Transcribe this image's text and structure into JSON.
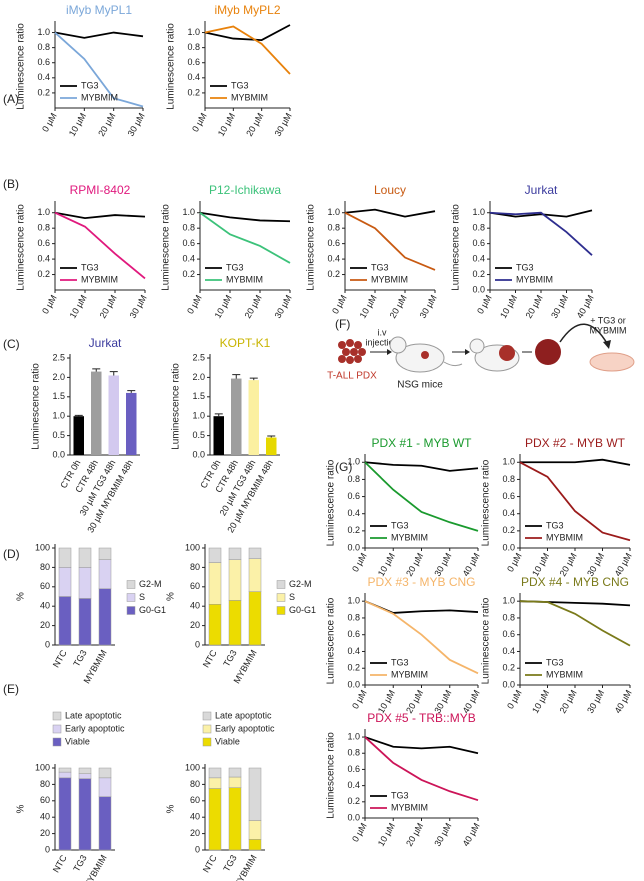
{
  "chart_data": [
    {
      "type": "line",
      "panel": "(A)",
      "title": "iMyb MyPL1",
      "title_color": "#7ba7d9",
      "ylabel": "Luminescence ratio",
      "categories": [
        "0 µM",
        "10 µM",
        "20 µM",
        "30 µM"
      ],
      "ylim": [
        0,
        1.1
      ],
      "yticks": [
        0.2,
        0.4,
        0.6,
        0.8,
        {
          "value": 1,
          "label": "1.0"
        }
      ],
      "legend": "lower left",
      "series": [
        {
          "name": "TG3",
          "color": "#000000",
          "values": [
            1.0,
            0.93,
            1.0,
            0.95
          ]
        },
        {
          "name": "MYBMIM",
          "color": "#7ba7d9",
          "values": [
            1.0,
            0.65,
            0.13,
            0.02
          ]
        }
      ]
    },
    {
      "type": "line",
      "title": "iMyb MyPL2",
      "title_color": "#e8820c",
      "ylabel": "Luminescence ratio",
      "categories": [
        "0 µM",
        "10 µM",
        "20 µM",
        "30 µM"
      ],
      "ylim": [
        0,
        1.1
      ],
      "yticks": [
        0.2,
        0.4,
        0.6,
        0.8,
        {
          "value": 1,
          "label": "1.0"
        }
      ],
      "legend": "lower left",
      "series": [
        {
          "name": "TG3",
          "color": "#000000",
          "values": [
            1.0,
            0.92,
            0.9,
            1.1
          ]
        },
        {
          "name": "MYBMIM",
          "color": "#e8820c",
          "values": [
            1.0,
            1.08,
            0.85,
            0.45
          ]
        }
      ]
    },
    {
      "type": "line",
      "panel": "(B)",
      "title": "RPMI-8402",
      "title_color": "#e0197d",
      "ylabel": "Luminescence ratio",
      "categories": [
        "0 µM",
        "10 µM",
        "20 µM",
        "30 µM"
      ],
      "ylim": [
        0,
        1.1
      ],
      "yticks": [
        0.2,
        0.4,
        0.6,
        0.8,
        {
          "value": 1,
          "label": "1.0"
        }
      ],
      "legend": "lower left",
      "series": [
        {
          "name": "TG3",
          "color": "#000000",
          "values": [
            1.0,
            0.93,
            0.97,
            0.95
          ]
        },
        {
          "name": "MYBMIM",
          "color": "#e0197d",
          "values": [
            1.0,
            0.82,
            0.47,
            0.15
          ]
        }
      ]
    },
    {
      "type": "line",
      "title": "P12-Ichikawa",
      "title_color": "#3cc27a",
      "ylabel": "Luminescence ratio",
      "categories": [
        "0 µM",
        "10 µM",
        "20 µM",
        "30 µM"
      ],
      "ylim": [
        0,
        1.1
      ],
      "yticks": [
        0.2,
        0.4,
        0.6,
        0.8,
        {
          "value": 1,
          "label": "1.0"
        }
      ],
      "legend": "lower left",
      "series": [
        {
          "name": "TG3",
          "color": "#000000",
          "values": [
            1.0,
            0.94,
            0.9,
            0.89
          ]
        },
        {
          "name": "MYBMIM",
          "color": "#3cc27a",
          "values": [
            1.0,
            0.72,
            0.57,
            0.35
          ]
        }
      ]
    },
    {
      "type": "line",
      "title": "Loucy",
      "title_color": "#c85a12",
      "ylabel": "Luminescence ratio",
      "categories": [
        "0 µM",
        "10 µM",
        "20 µM",
        "30 µM"
      ],
      "ylim": [
        0,
        1.1
      ],
      "yticks": [
        0.2,
        0.4,
        0.6,
        0.8,
        {
          "value": 1,
          "label": "1.0"
        }
      ],
      "legend": "lower left",
      "series": [
        {
          "name": "TG3",
          "color": "#000000",
          "values": [
            1.0,
            1.04,
            0.95,
            1.02
          ]
        },
        {
          "name": "MYBMIM",
          "color": "#c85a12",
          "values": [
            1.0,
            0.8,
            0.42,
            0.26
          ]
        }
      ]
    },
    {
      "type": "line",
      "title": "Jurkat",
      "title_color": "#3b3b9e",
      "ylabel": "Luminescence ratio",
      "categories": [
        "0 µM",
        "10 µM",
        "20 µM",
        "30 µM",
        "40 µM"
      ],
      "ylim": [
        0,
        1.1
      ],
      "yticks": [
        {
          "value": 0,
          "label": "0.0"
        },
        0.2,
        0.4,
        0.6,
        0.8,
        {
          "value": 1,
          "label": "1.0"
        }
      ],
      "legend": "lower left",
      "series": [
        {
          "name": "TG3",
          "color": "#000000",
          "values": [
            1.0,
            0.95,
            0.98,
            0.95,
            1.03
          ]
        },
        {
          "name": "MYBMIM",
          "color": "#2e2e8f",
          "values": [
            1.0,
            0.98,
            1.0,
            0.75,
            0.45
          ]
        }
      ]
    },
    {
      "type": "bar",
      "panel": "(C)",
      "title": "Jurkat",
      "title_color": "#3b3b9e",
      "ylabel": "Luminescence ratio",
      "categories": [
        "CTR 0h",
        "CTR 48h",
        "30 µM TG3 48h",
        "30 µM MYBMIM 48h"
      ],
      "values": [
        1.0,
        2.15,
        2.05,
        1.6
      ],
      "errors": [
        0.02,
        0.07,
        0.1,
        0.06
      ],
      "colors": [
        "#000000",
        "#9e9e9e",
        "#d3c9ef",
        "#6a5fc1"
      ],
      "ylim": [
        0,
        2.5
      ],
      "yticks": [
        {
          "value": 0,
          "label": "0.0"
        },
        0.5,
        {
          "value": 1,
          "label": "1.0"
        },
        1.5,
        {
          "value": 2,
          "label": "2.0"
        },
        2.5
      ]
    },
    {
      "type": "bar",
      "title": "KOPT-K1",
      "title_color": "#c8b400",
      "ylabel": "Luminescence ratio",
      "categories": [
        "CTR 0h",
        "CTR 48h",
        "20 µM TG3 48h",
        "20 µM MYBMIM 48h"
      ],
      "values": [
        1.0,
        1.97,
        1.93,
        0.45
      ],
      "errors": [
        0.06,
        0.1,
        0.05,
        0.04
      ],
      "colors": [
        "#000000",
        "#9e9e9e",
        "#fbf0a0",
        "#e6d800"
      ],
      "ylim": [
        0,
        2.5
      ],
      "yticks": [
        {
          "value": 0,
          "label": "0.0"
        },
        0.5,
        {
          "value": 1,
          "label": "1.0"
        },
        1.5,
        {
          "value": 2,
          "label": "2.0"
        },
        2.5
      ]
    },
    {
      "type": "stacked_bar",
      "panel": "(D)",
      "ylabel": "%",
      "categories": [
        "NTC",
        "TG3",
        "MYBMIM"
      ],
      "ylim": [
        0,
        100
      ],
      "yticks": [
        0,
        20,
        40,
        60,
        80,
        100
      ],
      "legend": "right",
      "series": [
        {
          "name": "G0-G1",
          "color": "#6a5fc1",
          "values": [
            50,
            48,
            58
          ]
        },
        {
          "name": "S",
          "color": "#d9d2f2",
          "values": [
            30,
            32,
            30
          ]
        },
        {
          "name": "G2-M",
          "color": "#d9d9d9",
          "values": [
            20,
            20,
            12
          ]
        }
      ]
    },
    {
      "type": "stacked_bar",
      "ylabel": "%",
      "categories": [
        "NTC",
        "TG3",
        "MYBMIM"
      ],
      "ylim": [
        0,
        100
      ],
      "yticks": [
        0,
        20,
        40,
        60,
        80,
        100
      ],
      "legend": "right",
      "series": [
        {
          "name": "G0-G1",
          "color": "#ecdc00",
          "values": [
            42,
            46,
            55
          ]
        },
        {
          "name": "S",
          "color": "#fbf1a8",
          "values": [
            43,
            42,
            34
          ]
        },
        {
          "name": "G2-M",
          "color": "#d9d9d9",
          "values": [
            15,
            12,
            11
          ]
        }
      ]
    },
    {
      "type": "stacked_bar",
      "panel": "(E)",
      "ylabel": "%",
      "categories": [
        "NTC",
        "TG3",
        "MYBMIM"
      ],
      "ylim": [
        0,
        100
      ],
      "yticks": [
        0,
        20,
        40,
        60,
        80,
        100
      ],
      "legend": "top",
      "series": [
        {
          "name": "Viable",
          "color": "#6a5fc1",
          "values": [
            88,
            87,
            65
          ]
        },
        {
          "name": "Early apoptotic",
          "color": "#d9d2f2",
          "values": [
            7,
            6,
            23
          ]
        },
        {
          "name": "Late apoptotic",
          "color": "#d9d9d9",
          "values": [
            5,
            7,
            12
          ]
        }
      ]
    },
    {
      "type": "stacked_bar",
      "ylabel": "%",
      "categories": [
        "NTC",
        "TG3",
        "MYBMIM"
      ],
      "ylim": [
        0,
        100
      ],
      "yticks": [
        0,
        20,
        40,
        60,
        80,
        100
      ],
      "legend": "top",
      "series": [
        {
          "name": "Viable",
          "color": "#ecdc00",
          "values": [
            75,
            76,
            13
          ]
        },
        {
          "name": "Early apoptotic",
          "color": "#fbf1a8",
          "values": [
            13,
            13,
            23
          ]
        },
        {
          "name": "Late apoptotic",
          "color": "#d9d9d9",
          "values": [
            12,
            11,
            64
          ]
        }
      ]
    },
    {
      "type": "line",
      "panel": "(G)",
      "title": "PDX #1 - MYB WT",
      "title_color": "#1a9a2e",
      "ylabel": "Luminescence ratio",
      "categories": [
        "0 µM",
        "10 µM",
        "20 µM",
        "30 µM",
        "40 µM"
      ],
      "ylim": [
        0,
        1.05
      ],
      "yticks": [
        {
          "value": 0,
          "label": "0.0"
        },
        0.2,
        0.4,
        0.6,
        0.8,
        {
          "value": 1,
          "label": "1.0"
        }
      ],
      "legend": "lower left",
      "series": [
        {
          "name": "TG3",
          "color": "#000000",
          "values": [
            1.0,
            0.97,
            0.96,
            0.9,
            0.93
          ]
        },
        {
          "name": "MYBMIM",
          "color": "#1a9a2e",
          "values": [
            1.0,
            0.68,
            0.42,
            0.3,
            0.2
          ]
        }
      ]
    },
    {
      "type": "line",
      "title": "PDX #2 - MYB WT",
      "title_color": "#9b1b1b",
      "ylabel": "Luminescence ratio",
      "categories": [
        "0 µM",
        "10 µM",
        "20 µM",
        "30 µM",
        "40 µM"
      ],
      "ylim": [
        0,
        1.05
      ],
      "yticks": [
        {
          "value": 0,
          "label": "0.0"
        },
        0.2,
        0.4,
        0.6,
        0.8,
        {
          "value": 1,
          "label": "1.0"
        }
      ],
      "legend": "lower left",
      "series": [
        {
          "name": "TG3",
          "color": "#000000",
          "values": [
            1.0,
            1.0,
            1.0,
            1.03,
            0.97
          ]
        },
        {
          "name": "MYBMIM",
          "color": "#9b1b1b",
          "values": [
            1.0,
            0.83,
            0.43,
            0.18,
            0.09
          ]
        }
      ]
    },
    {
      "type": "line",
      "title": "PDX #3 - MYB CNG",
      "title_color": "#f5b56a",
      "ylabel": "Luminescence ratio",
      "categories": [
        "0 µM",
        "10 µM",
        "20 µM",
        "30 µM",
        "40 µM"
      ],
      "ylim": [
        0,
        1.05
      ],
      "yticks": [
        {
          "value": 0,
          "label": "0.0"
        },
        0.2,
        0.4,
        0.6,
        0.8,
        {
          "value": 1,
          "label": "1.0"
        }
      ],
      "legend": "lower left",
      "series": [
        {
          "name": "TG3",
          "color": "#000000",
          "values": [
            1.0,
            0.86,
            0.88,
            0.89,
            0.87
          ]
        },
        {
          "name": "MYBMIM",
          "color": "#f5b56a",
          "values": [
            1.0,
            0.85,
            0.6,
            0.3,
            0.14
          ]
        }
      ]
    },
    {
      "type": "line",
      "title": "PDX #4 - MYB CNG",
      "title_color": "#7a7a1a",
      "ylabel": "Luminescence ratio",
      "categories": [
        "0 µM",
        "10 µM",
        "20 µM",
        "30 µM",
        "40 µM"
      ],
      "ylim": [
        0,
        1.05
      ],
      "yticks": [
        {
          "value": 0,
          "label": "0.0"
        },
        0.2,
        0.4,
        0.6,
        0.8,
        {
          "value": 1,
          "label": "1.0"
        }
      ],
      "legend": "lower left",
      "series": [
        {
          "name": "TG3",
          "color": "#000000",
          "values": [
            1.0,
            0.99,
            0.98,
            0.97,
            0.95
          ]
        },
        {
          "name": "MYBMIM",
          "color": "#7a7a1a",
          "values": [
            1.0,
            0.99,
            0.85,
            0.65,
            0.47
          ]
        }
      ]
    },
    {
      "type": "line",
      "title": "PDX #5 - TRB::MYB",
      "title_color": "#cc1458",
      "ylabel": "Luminescence ratio",
      "categories": [
        "0 µM",
        "10 µM",
        "20 µM",
        "30 µM",
        "40 µM"
      ],
      "ylim": [
        0,
        1.05
      ],
      "yticks": [
        {
          "value": 0,
          "label": "0.0"
        },
        0.2,
        0.4,
        0.6,
        0.8,
        {
          "value": 1,
          "label": "1.0"
        }
      ],
      "legend": "lower left",
      "series": [
        {
          "name": "TG3",
          "color": "#000000",
          "values": [
            1.0,
            0.88,
            0.86,
            0.88,
            0.8
          ]
        },
        {
          "name": "MYBMIM",
          "color": "#cc1458",
          "values": [
            1.0,
            0.68,
            0.47,
            0.33,
            0.22
          ]
        }
      ]
    }
  ],
  "diagram": {
    "panel": "(F)",
    "source_label": "T-ALL PDX",
    "arrow_label": [
      "i.v",
      "injection"
    ],
    "mice_label": "NSG mice",
    "treatment_label": [
      "+ TG3 or",
      "MYBMIM"
    ]
  }
}
